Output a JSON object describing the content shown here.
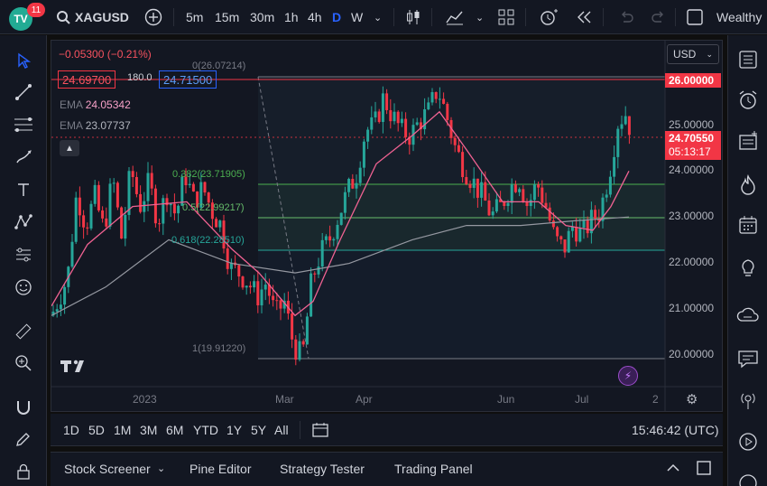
{
  "app": {
    "logo_text": "TV",
    "notifications": "11"
  },
  "toolbar": {
    "symbol": "XAGUSD",
    "intervals": [
      "5m",
      "15m",
      "30m",
      "1h",
      "4h",
      "D",
      "W"
    ],
    "active_interval": "D",
    "account": "Wealthy"
  },
  "legend": {
    "change": "−0.05300 (−0.21%)",
    "bid": "24.69700",
    "spread": "180.0",
    "ask": "24.71500",
    "ema1_label": "EMA",
    "ema1_value": "24.05342",
    "ema2_label": "EMA",
    "ema2_value": "23.07737"
  },
  "fib": {
    "top": "0(26.07214)",
    "l382": "0.382(23.71905)",
    "l5": "0.5(22.99217)",
    "l618": "0.618(22.28510)",
    "bottom": "1(19.91220)"
  },
  "price_axis": {
    "currency": "USD",
    "labels": [
      "25.00000",
      "24.00000",
      "23.00000",
      "22.00000",
      "21.00000",
      "20.00000"
    ],
    "level_tag": "26.00000",
    "last_price": "24.70550",
    "countdown": "05:13:17"
  },
  "time_axis": {
    "labels": [
      "2023",
      "Mar",
      "Apr",
      "Jun",
      "Jul",
      "2"
    ]
  },
  "ranges": {
    "buttons": [
      "1D",
      "5D",
      "1M",
      "3M",
      "6M",
      "YTD",
      "1Y",
      "5Y",
      "All"
    ],
    "clock": "15:46:42 (UTC)"
  },
  "bottom": {
    "tabs": [
      "Stock Screener",
      "Pine Editor",
      "Strategy Tester",
      "Trading Panel"
    ]
  },
  "colors": {
    "up": "#26a69a",
    "down": "#f23645",
    "ema_fast": "#f06292",
    "ema_slow": "#9598a1",
    "fib_green": "#4caf50",
    "fib_teal": "#26a69a"
  },
  "chart_data": {
    "type": "candlestick",
    "symbol": "XAGUSD",
    "timeframe": "D",
    "ylim": [
      19.5,
      26.8
    ],
    "horizontal_levels": [
      26.0,
      23.71905,
      22.99217,
      22.2851,
      19.9122,
      24.7055
    ],
    "path_start": [
      0,
      21.0
    ],
    "close_path": [
      [
        18,
        21.8
      ],
      [
        28,
        23.6
      ],
      [
        38,
        22.9
      ],
      [
        48,
        23.5
      ],
      [
        58,
        22.8
      ],
      [
        68,
        23.9
      ],
      [
        78,
        22.6
      ],
      [
        88,
        24.1
      ],
      [
        98,
        23.3
      ],
      [
        108,
        23.8
      ],
      [
        118,
        23.0
      ],
      [
        128,
        23.6
      ],
      [
        138,
        23.1
      ],
      [
        148,
        24.0
      ],
      [
        158,
        23.4
      ],
      [
        168,
        23.7
      ],
      [
        178,
        23.2
      ],
      [
        188,
        22.9
      ],
      [
        198,
        22.0
      ],
      [
        208,
        21.9
      ],
      [
        218,
        21.7
      ],
      [
        228,
        21.4
      ],
      [
        238,
        21.7
      ],
      [
        248,
        21.0
      ],
      [
        258,
        21.3
      ],
      [
        268,
        20.4
      ],
      [
        278,
        20.1
      ],
      [
        288,
        21.7
      ],
      [
        298,
        22.3
      ],
      [
        308,
        22.6
      ],
      [
        318,
        23.1
      ],
      [
        328,
        23.6
      ],
      [
        338,
        24.0
      ],
      [
        348,
        24.9
      ],
      [
        358,
        25.0
      ],
      [
        368,
        25.6
      ],
      [
        378,
        25.2
      ],
      [
        388,
        24.9
      ],
      [
        398,
        24.8
      ],
      [
        408,
        25.1
      ],
      [
        418,
        25.3
      ],
      [
        428,
        25.8
      ],
      [
        438,
        25.2
      ],
      [
        448,
        24.5
      ],
      [
        458,
        24.1
      ],
      [
        468,
        23.8
      ],
      [
        478,
        23.5
      ],
      [
        488,
        23.1
      ],
      [
        498,
        23.3
      ],
      [
        508,
        23.7
      ],
      [
        518,
        23.9
      ],
      [
        528,
        23.3
      ],
      [
        538,
        23.8
      ],
      [
        548,
        23.3
      ],
      [
        558,
        22.6
      ],
      [
        568,
        22.4
      ],
      [
        578,
        22.9
      ],
      [
        588,
        22.7
      ],
      [
        598,
        23.0
      ],
      [
        608,
        23.2
      ],
      [
        618,
        24.0
      ],
      [
        628,
        25.1
      ],
      [
        638,
        25.3
      ],
      [
        643,
        24.7
      ]
    ],
    "ema_fast_path": [
      [
        0,
        21.2
      ],
      [
        40,
        22.5
      ],
      [
        90,
        23.3
      ],
      [
        150,
        23.4
      ],
      [
        200,
        22.4
      ],
      [
        230,
        21.9
      ],
      [
        270,
        21.0
      ],
      [
        290,
        21.3
      ],
      [
        320,
        22.6
      ],
      [
        360,
        24.2
      ],
      [
        400,
        24.8
      ],
      [
        430,
        25.3
      ],
      [
        460,
        24.5
      ],
      [
        500,
        23.4
      ],
      [
        540,
        23.4
      ],
      [
        570,
        22.9
      ],
      [
        600,
        22.8
      ],
      [
        620,
        23.3
      ],
      [
        640,
        24.05
      ]
    ],
    "ema_slow_path": [
      [
        0,
        21.0
      ],
      [
        60,
        21.6
      ],
      [
        130,
        22.6
      ],
      [
        200,
        22.1
      ],
      [
        270,
        21.9
      ],
      [
        330,
        22.1
      ],
      [
        400,
        22.6
      ],
      [
        460,
        22.9
      ],
      [
        520,
        22.9
      ],
      [
        580,
        23.0
      ],
      [
        640,
        23.08
      ]
    ]
  }
}
